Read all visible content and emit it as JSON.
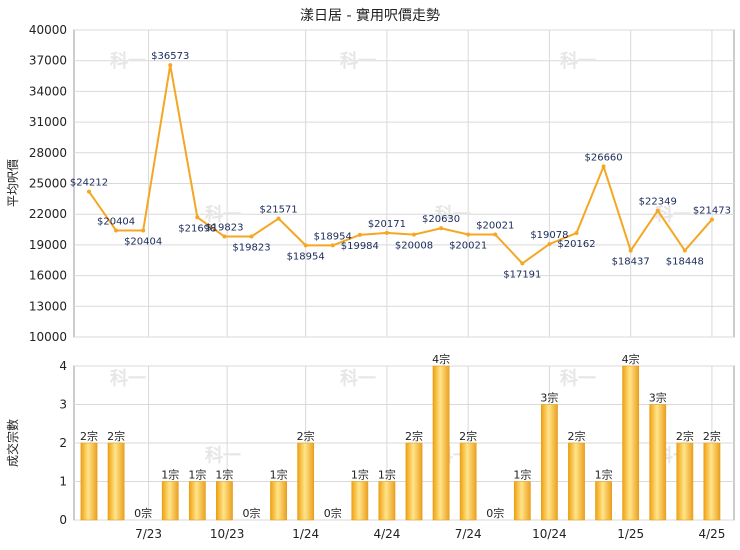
{
  "chart_data": [
    {
      "type": "line",
      "title": "漾日居 - 實用呎價走勢",
      "ylabel": "平均呎價",
      "ylim": [
        10000,
        40000
      ],
      "yticks": [
        "10000",
        "13000",
        "16000",
        "19000",
        "22000",
        "25000",
        "28000",
        "31000",
        "34000",
        "37000",
        "40000"
      ],
      "xticks": [
        "7/23",
        "10/23",
        "1/24",
        "4/24",
        "7/24",
        "10/24",
        "1/25",
        "4/25"
      ],
      "grid": true,
      "color": "#f5a623",
      "values": [
        24212,
        20404,
        20404,
        36573,
        21698,
        19823,
        19823,
        21571,
        18954,
        18954,
        19984,
        20171,
        20008,
        20630,
        20021,
        20021,
        17191,
        19078,
        20162,
        26660,
        18437,
        22349,
        18448,
        21473
      ],
      "labels": [
        "$24212",
        "$20404",
        "$20404",
        "$36573",
        "$21698",
        "$19823",
        "$19823",
        "$21571",
        "$18954",
        "$18954",
        "$19984",
        "$20171",
        "$20008",
        "$20630",
        "$20021",
        "$20021",
        "$17191",
        "$19078",
        "$20162",
        "$26660",
        "$18437",
        "$22349",
        "$18448",
        "$21473"
      ]
    },
    {
      "type": "bar",
      "ylabel": "成交宗數",
      "ylim": [
        0,
        4
      ],
      "yticks": [
        "0",
        "1",
        "2",
        "3",
        "4"
      ],
      "xticks": [
        "7/23",
        "10/23",
        "1/24",
        "4/24",
        "7/24",
        "10/24",
        "1/25",
        "4/25"
      ],
      "grid": true,
      "color": "#f5a623",
      "values": [
        2,
        2,
        0,
        1,
        1,
        1,
        0,
        1,
        2,
        0,
        1,
        1,
        2,
        4,
        2,
        0,
        1,
        3,
        2,
        1,
        4,
        3,
        2,
        2
      ],
      "labels": [
        "2宗",
        "2宗",
        "0宗",
        "1宗",
        "1宗",
        "1宗",
        "0宗",
        "1宗",
        "2宗",
        "0宗",
        "1宗",
        "1宗",
        "2宗",
        "4宗",
        "2宗",
        "0宗",
        "1宗",
        "3宗",
        "2宗",
        "1宗",
        "4宗",
        "3宗",
        "2宗",
        "2宗"
      ]
    }
  ],
  "watermark": "科一"
}
